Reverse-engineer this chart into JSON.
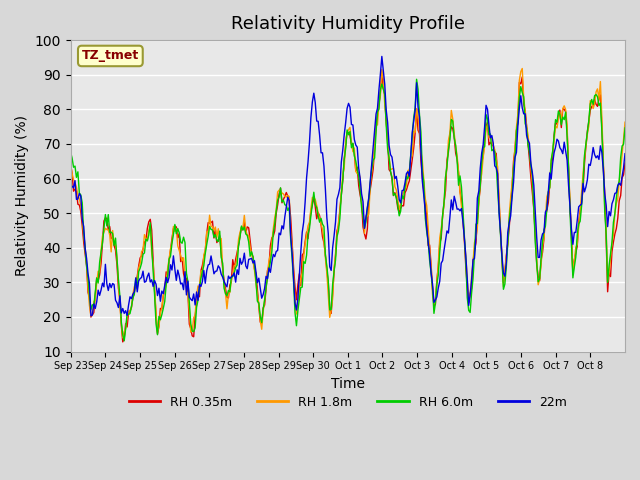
{
  "title": "Relativity Humidity Profile",
  "xlabel": "Time",
  "ylabel": "Relativity Humidity (%)",
  "ylim": [
    10,
    100
  ],
  "yticks": [
    10,
    20,
    30,
    40,
    50,
    60,
    70,
    80,
    90,
    100
  ],
  "xtick_labels": [
    "Sep 23",
    "Sep 24",
    "Sep 25",
    "Sep 26",
    "Sep 27",
    "Sep 28",
    "Sep 29",
    "Sep 30",
    "Oct 1",
    "Oct 2",
    "Oct 3",
    "Oct 4",
    "Oct 5",
    "Oct 6",
    "Oct 7",
    "Oct 8"
  ],
  "colors": {
    "RH 0.35m": "#dd0000",
    "RH 1.8m": "#ff9900",
    "RH 6.0m": "#00cc00",
    "22m": "#0000dd"
  },
  "legend_labels": [
    "RH 0.35m",
    "RH 1.8m",
    "RH 6.0m",
    "22m"
  ],
  "annotation_text": "TZ_tmet",
  "annotation_color": "#880000",
  "annotation_bg": "#ffffcc",
  "plot_bg": "#e8e8e8",
  "title_fontsize": 13,
  "axis_fontsize": 10,
  "legend_fontsize": 9,
  "n_days": 16
}
